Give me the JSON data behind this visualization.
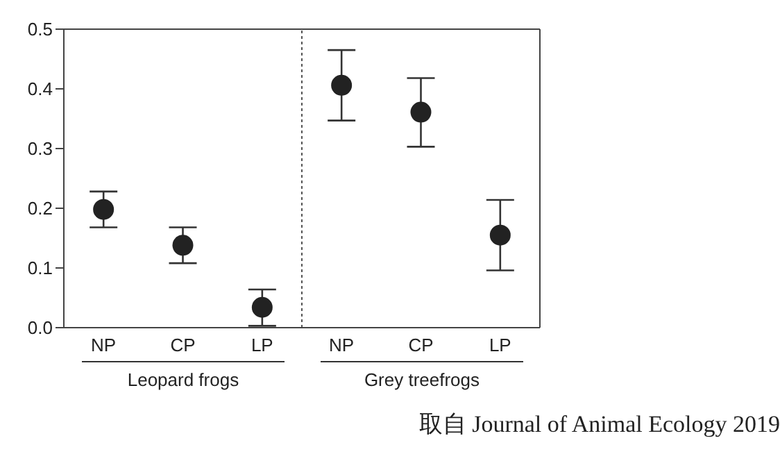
{
  "chart_data": {
    "type": "scatter",
    "categories": [
      "NP",
      "CP",
      "LP",
      "NP",
      "CP",
      "LP"
    ],
    "series": [
      {
        "color": "#222222",
        "values": [
          0.198,
          0.138,
          0.034,
          0.406,
          0.361,
          0.155
        ],
        "errors": [
          [
            0.168,
            0.228
          ],
          [
            0.108,
            0.168
          ],
          [
            0.003,
            0.064
          ],
          [
            0.347,
            0.465
          ],
          [
            0.303,
            0.418
          ],
          [
            0.096,
            0.214
          ]
        ]
      }
    ],
    "ylim": [
      0,
      0.5
    ],
    "yticks": [
      {
        "value": 0,
        "label": "0.0"
      },
      0.1,
      0.2,
      0.3,
      0.4,
      0.5
    ],
    "marker": "circle",
    "annotations": [
      "Leopard frogs",
      "Grey treefrogs",
      "取自 Journal of Animal Ecology 2019"
    ]
  }
}
